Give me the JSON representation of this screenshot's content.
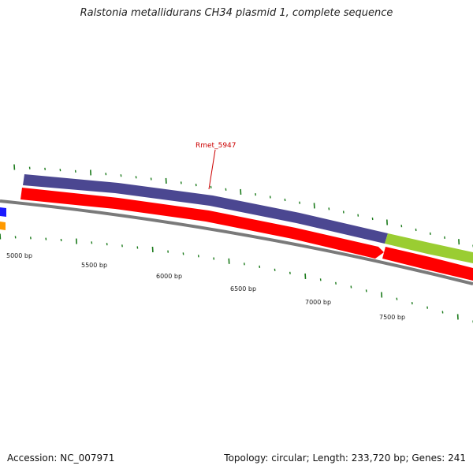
{
  "title": "Ralstonia metallidurans CH34 plasmid 1, complete sequence",
  "footer": {
    "accession": "Accession: NC_007971",
    "topology": "Topology: circular; Length: 233,720 bp; Genes: 241"
  },
  "callout": {
    "label": "Rmet_5947"
  },
  "scale_labels": [
    "5000 bp",
    "5500 bp",
    "6000 bp",
    "6500 bp",
    "7000 bp",
    "7500 bp"
  ],
  "colors": {
    "backbone": "#7a7a7a",
    "gene_red": "#ff0000",
    "gene_purple": "#4b4791",
    "gene_green": "#9acd32",
    "gene_blue": "#1a1aff",
    "gene_orange": "#ff9900",
    "tick_green": "#1a7a1a",
    "callout": "#cc0000"
  }
}
